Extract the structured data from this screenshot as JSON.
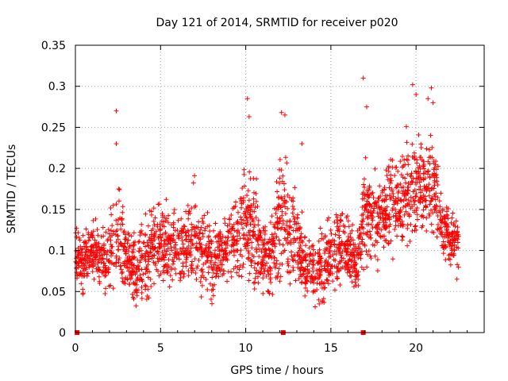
{
  "chart_data": {
    "type": "scatter",
    "title": "Day 121 of 2014, SRMTID for receiver p020",
    "xlabel": "GPS time / hours",
    "ylabel": "SRMTID / TECUs",
    "xlim": [
      0,
      24
    ],
    "ylim": [
      0,
      0.35
    ],
    "xticks": [
      0,
      5,
      10,
      15,
      20
    ],
    "xtick_labels": [
      "0",
      "5",
      "10",
      "15",
      "20"
    ],
    "yticks": [
      0,
      0.05,
      0.1,
      0.15,
      0.2,
      0.25,
      0.3,
      0.35
    ],
    "ytick_labels": [
      "0",
      "0.05",
      "0.1",
      "0.15",
      "0.2",
      "0.25",
      "0.3",
      "0.35"
    ],
    "grid": true,
    "marker": "plus",
    "color": "#ff0000",
    "zero_markers_x": [
      0.1,
      12.2,
      16.9
    ],
    "envelope": [
      [
        0.0,
        0.04,
        0.14
      ],
      [
        0.5,
        0.04,
        0.13
      ],
      [
        1.0,
        0.05,
        0.15
      ],
      [
        1.5,
        0.04,
        0.14
      ],
      [
        2.0,
        0.03,
        0.16
      ],
      [
        2.5,
        0.03,
        0.22
      ],
      [
        3.0,
        0.03,
        0.15
      ],
      [
        3.5,
        0.02,
        0.13
      ],
      [
        4.0,
        0.02,
        0.15
      ],
      [
        4.5,
        0.03,
        0.17
      ],
      [
        5.0,
        0.04,
        0.19
      ],
      [
        5.5,
        0.04,
        0.17
      ],
      [
        6.0,
        0.04,
        0.16
      ],
      [
        6.5,
        0.04,
        0.17
      ],
      [
        7.0,
        0.04,
        0.2
      ],
      [
        7.5,
        0.03,
        0.17
      ],
      [
        8.0,
        0.03,
        0.15
      ],
      [
        8.5,
        0.04,
        0.15
      ],
      [
        9.0,
        0.05,
        0.17
      ],
      [
        9.5,
        0.05,
        0.19
      ],
      [
        10.0,
        0.05,
        0.22
      ],
      [
        10.5,
        0.03,
        0.22
      ],
      [
        11.0,
        0.03,
        0.15
      ],
      [
        11.5,
        0.03,
        0.15
      ],
      [
        12.0,
        0.04,
        0.25
      ],
      [
        12.5,
        0.04,
        0.23
      ],
      [
        13.0,
        0.03,
        0.18
      ],
      [
        13.5,
        0.03,
        0.14
      ],
      [
        14.0,
        0.02,
        0.13
      ],
      [
        14.5,
        0.02,
        0.14
      ],
      [
        15.0,
        0.03,
        0.16
      ],
      [
        15.5,
        0.04,
        0.18
      ],
      [
        16.0,
        0.04,
        0.17
      ],
      [
        16.5,
        0.03,
        0.13
      ],
      [
        17.0,
        0.05,
        0.24
      ],
      [
        17.5,
        0.06,
        0.24
      ],
      [
        18.0,
        0.06,
        0.22
      ],
      [
        18.5,
        0.07,
        0.24
      ],
      [
        19.0,
        0.07,
        0.25
      ],
      [
        19.5,
        0.09,
        0.26
      ],
      [
        20.0,
        0.1,
        0.26
      ],
      [
        20.5,
        0.1,
        0.25
      ],
      [
        21.0,
        0.1,
        0.27
      ],
      [
        21.5,
        0.08,
        0.18
      ],
      [
        22.0,
        0.07,
        0.16
      ],
      [
        22.5,
        0.07,
        0.14
      ]
    ],
    "outliers": [
      [
        2.4,
        0.27
      ],
      [
        2.4,
        0.23
      ],
      [
        10.1,
        0.285
      ],
      [
        10.2,
        0.263
      ],
      [
        12.1,
        0.268
      ],
      [
        12.3,
        0.265
      ],
      [
        16.9,
        0.31
      ],
      [
        17.1,
        0.275
      ],
      [
        19.8,
        0.302
      ],
      [
        20.9,
        0.298
      ],
      [
        20.7,
        0.285
      ],
      [
        20.0,
        0.29
      ],
      [
        21.0,
        0.28
      ],
      [
        22.4,
        0.065
      ],
      [
        13.3,
        0.23
      ]
    ],
    "point_density_per_hour": 110
  }
}
